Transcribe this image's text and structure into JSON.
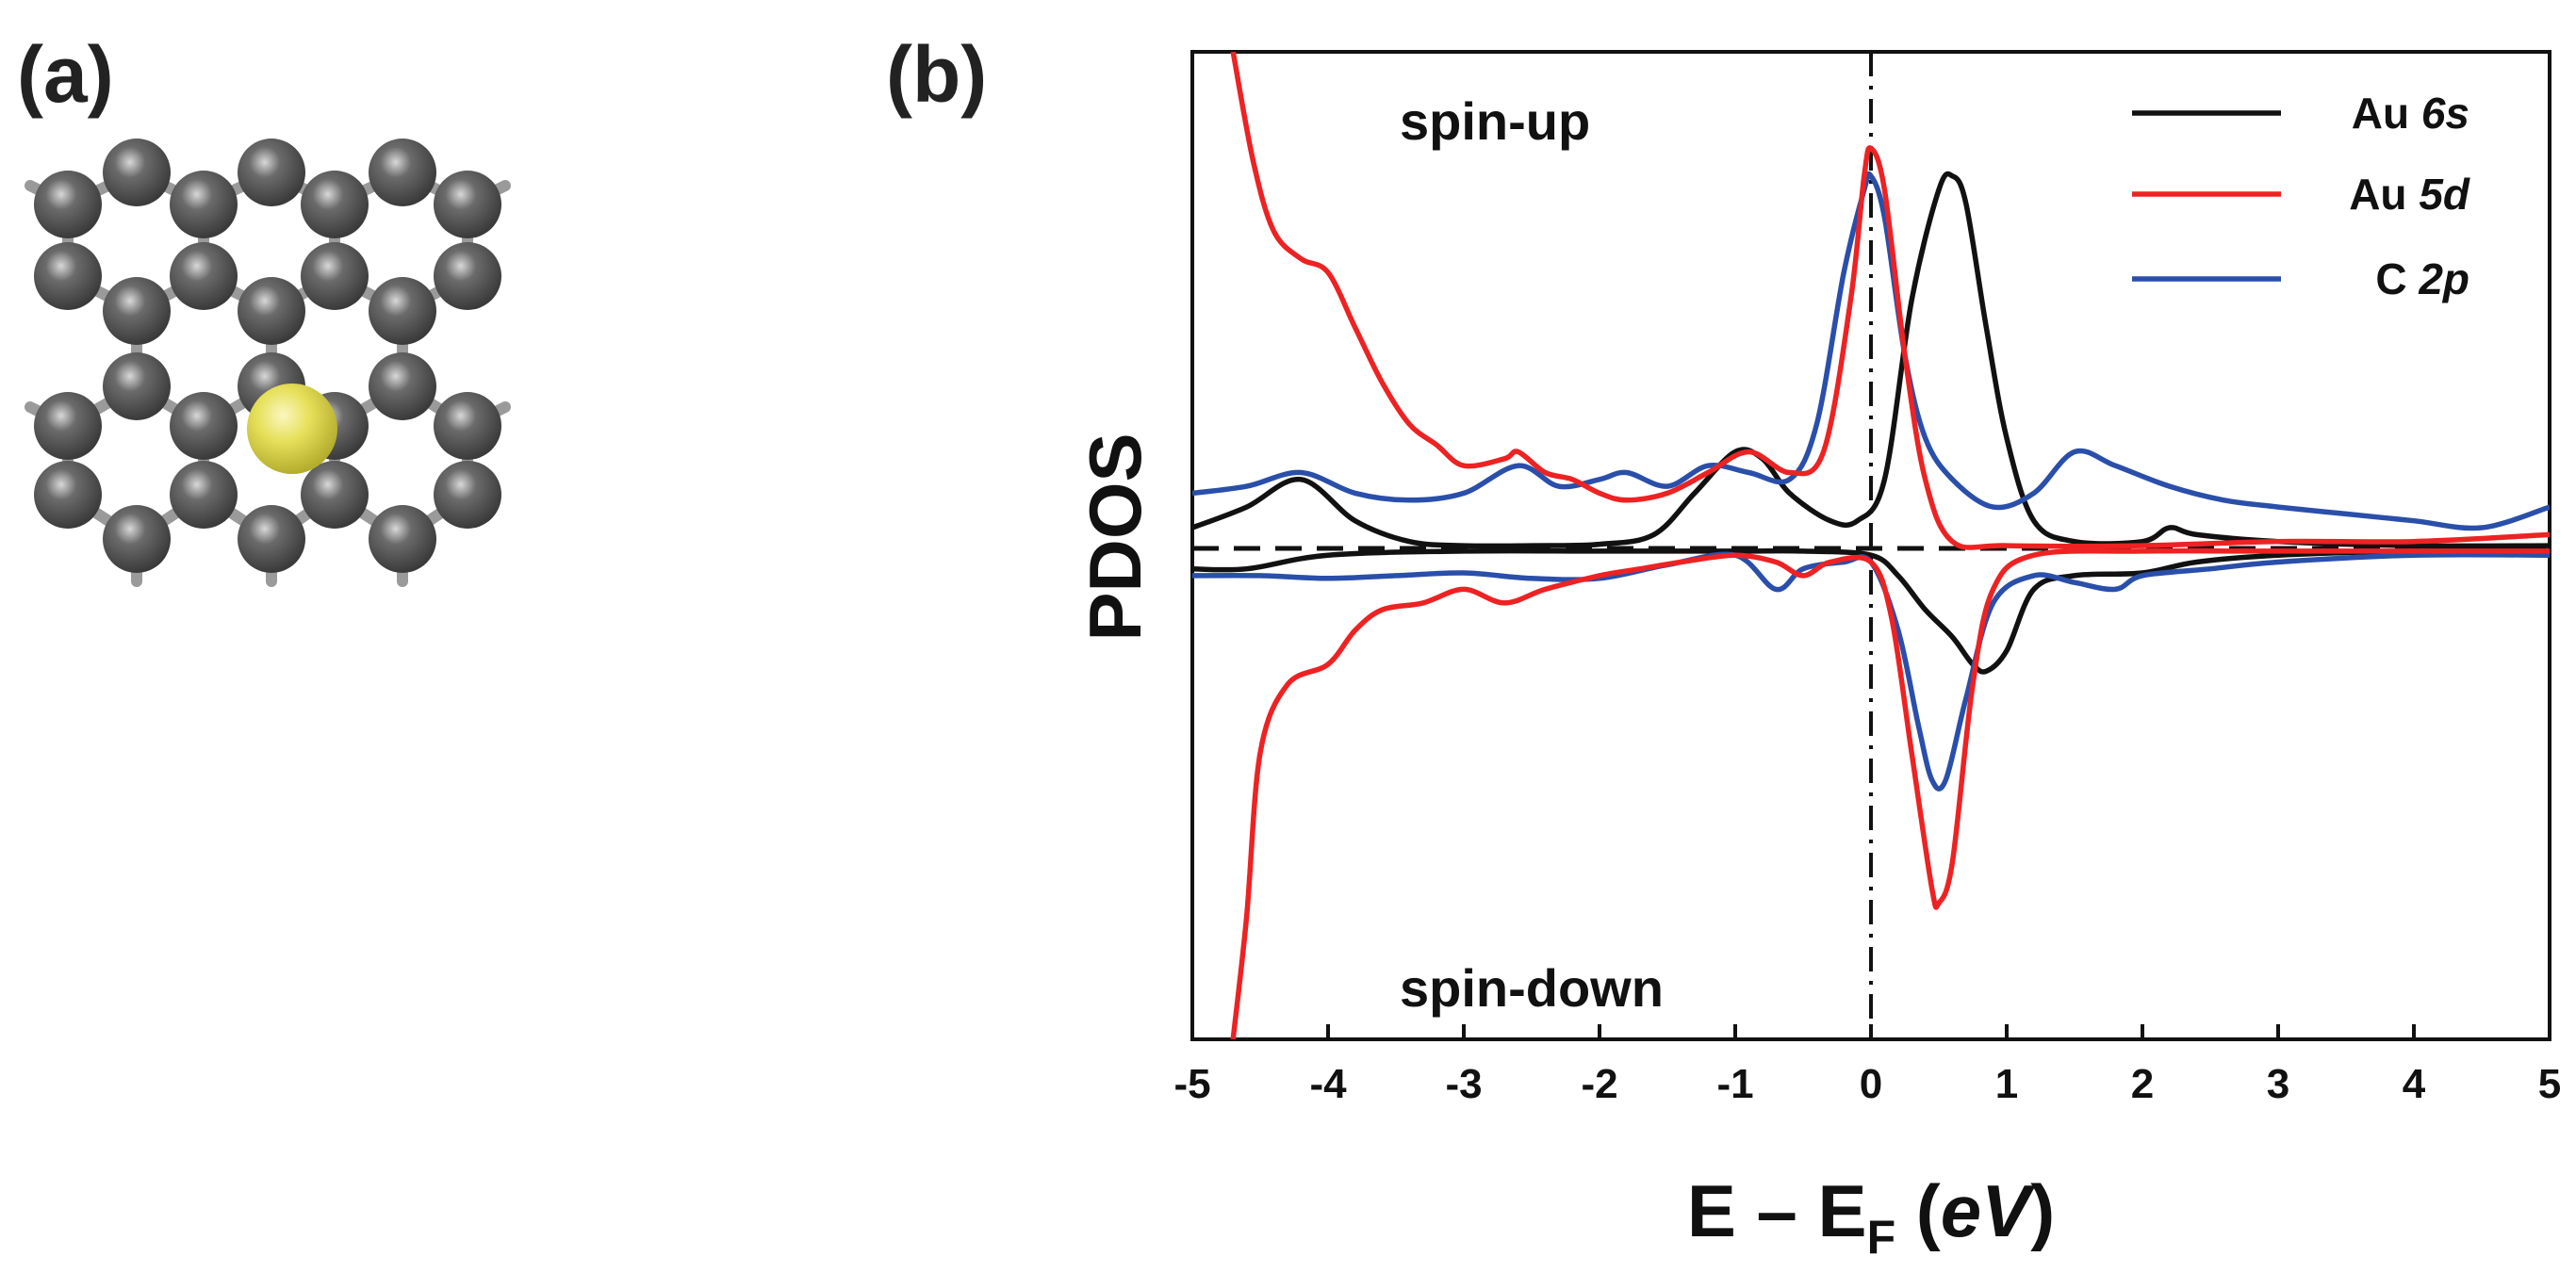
{
  "panel_a": {
    "label": "(a)",
    "atom_colors": {
      "carbon": "#6b6b6b",
      "gold": "#e6e05a",
      "bond": "#9a9a9a"
    }
  },
  "panel_b": {
    "label": "(b)"
  },
  "chart_data": {
    "type": "line",
    "ylabel": "PDOS",
    "xlabel_parts": {
      "main": "E – E",
      "sub": "F",
      "open": " (",
      "unit": "eV",
      "close": ")"
    },
    "xlim": [
      -5,
      5
    ],
    "xticks": [
      -5,
      -4,
      -3,
      -2,
      -1,
      0,
      1,
      2,
      3,
      4,
      5
    ],
    "ylim": [
      -3.6,
      3.6
    ],
    "yticks_shown": false,
    "grid": false,
    "legend_position": "top-right",
    "annotations": {
      "top": "spin-up",
      "bottom": "spin-down"
    },
    "reference_lines": {
      "horizontal_y": 0,
      "vertical_x": 0
    },
    "series": [
      {
        "name": "Au 6s",
        "name_main": "Au ",
        "name_italic": "6s",
        "color": "#111111",
        "up": [
          [
            -5,
            0.15
          ],
          [
            -4.6,
            0.3
          ],
          [
            -4.2,
            0.5
          ],
          [
            -3.8,
            0.2
          ],
          [
            -3.4,
            0.05
          ],
          [
            -3,
            0.02
          ],
          [
            -2.5,
            0.02
          ],
          [
            -2,
            0.03
          ],
          [
            -1.6,
            0.1
          ],
          [
            -1.3,
            0.4
          ],
          [
            -1.0,
            0.7
          ],
          [
            -0.8,
            0.65
          ],
          [
            -0.6,
            0.4
          ],
          [
            -0.3,
            0.2
          ],
          [
            -0.1,
            0.2
          ],
          [
            0.1,
            0.5
          ],
          [
            0.3,
            1.8
          ],
          [
            0.5,
            2.6
          ],
          [
            0.6,
            2.7
          ],
          [
            0.7,
            2.5
          ],
          [
            0.85,
            1.6
          ],
          [
            1.0,
            0.8
          ],
          [
            1.2,
            0.2
          ],
          [
            1.5,
            0.05
          ],
          [
            2.0,
            0.05
          ],
          [
            2.2,
            0.15
          ],
          [
            2.4,
            0.1
          ],
          [
            3,
            0.05
          ],
          [
            4,
            0.02
          ],
          [
            5,
            0.02
          ]
        ],
        "down": [
          [
            -5,
            -0.15
          ],
          [
            -4.6,
            -0.15
          ],
          [
            -4,
            -0.05
          ],
          [
            -3,
            -0.02
          ],
          [
            -2,
            -0.02
          ],
          [
            -1,
            -0.02
          ],
          [
            -0.5,
            -0.02
          ],
          [
            0,
            -0.05
          ],
          [
            0.2,
            -0.2
          ],
          [
            0.4,
            -0.45
          ],
          [
            0.6,
            -0.65
          ],
          [
            0.75,
            -0.85
          ],
          [
            0.85,
            -0.9
          ],
          [
            1.0,
            -0.75
          ],
          [
            1.2,
            -0.3
          ],
          [
            1.5,
            -0.2
          ],
          [
            2.0,
            -0.18
          ],
          [
            2.4,
            -0.1
          ],
          [
            3,
            -0.05
          ],
          [
            4,
            -0.02
          ],
          [
            5,
            -0.02
          ]
        ]
      },
      {
        "name": "Au 5d",
        "name_main": "Au ",
        "name_italic": "5d",
        "color": "#ee2222",
        "up": [
          [
            -4.7,
            3.6
          ],
          [
            -4.55,
            2.8
          ],
          [
            -4.4,
            2.3
          ],
          [
            -4.2,
            2.1
          ],
          [
            -4.0,
            2.0
          ],
          [
            -3.8,
            1.6
          ],
          [
            -3.6,
            1.2
          ],
          [
            -3.4,
            0.9
          ],
          [
            -3.2,
            0.75
          ],
          [
            -3.0,
            0.6
          ],
          [
            -2.7,
            0.65
          ],
          [
            -2.6,
            0.7
          ],
          [
            -2.4,
            0.55
          ],
          [
            -2.2,
            0.5
          ],
          [
            -2.0,
            0.4
          ],
          [
            -1.8,
            0.35
          ],
          [
            -1.5,
            0.4
          ],
          [
            -1.2,
            0.55
          ],
          [
            -0.9,
            0.7
          ],
          [
            -0.6,
            0.55
          ],
          [
            -0.35,
            0.7
          ],
          [
            -0.15,
            1.8
          ],
          [
            -0.05,
            2.7
          ],
          [
            0.0,
            2.9
          ],
          [
            0.1,
            2.6
          ],
          [
            0.25,
            1.4
          ],
          [
            0.4,
            0.5
          ],
          [
            0.6,
            0.05
          ],
          [
            1,
            0.02
          ],
          [
            2,
            0.02
          ],
          [
            3,
            0.05
          ],
          [
            4,
            0.05
          ],
          [
            5,
            0.1
          ]
        ],
        "down": [
          [
            -4.7,
            -3.6
          ],
          [
            -4.6,
            -2.7
          ],
          [
            -4.5,
            -1.5
          ],
          [
            -4.3,
            -1.0
          ],
          [
            -4.0,
            -0.85
          ],
          [
            -3.8,
            -0.6
          ],
          [
            -3.6,
            -0.45
          ],
          [
            -3.3,
            -0.4
          ],
          [
            -3.0,
            -0.3
          ],
          [
            -2.7,
            -0.4
          ],
          [
            -2.4,
            -0.3
          ],
          [
            -2.0,
            -0.2
          ],
          [
            -1.7,
            -0.15
          ],
          [
            -1.4,
            -0.1
          ],
          [
            -1.0,
            -0.05
          ],
          [
            -0.7,
            -0.1
          ],
          [
            -0.5,
            -0.2
          ],
          [
            -0.3,
            -0.1
          ],
          [
            0.0,
            -0.1
          ],
          [
            0.15,
            -0.5
          ],
          [
            0.3,
            -1.5
          ],
          [
            0.45,
            -2.5
          ],
          [
            0.5,
            -2.6
          ],
          [
            0.6,
            -2.3
          ],
          [
            0.75,
            -1.0
          ],
          [
            0.9,
            -0.3
          ],
          [
            1.2,
            -0.05
          ],
          [
            2,
            -0.02
          ],
          [
            3,
            -0.02
          ],
          [
            5,
            -0.02
          ]
        ]
      },
      {
        "name": "C 2p",
        "name_main": "C ",
        "name_italic": "2p",
        "color": "#2a4faa",
        "up": [
          [
            -5,
            0.4
          ],
          [
            -4.6,
            0.45
          ],
          [
            -4.2,
            0.55
          ],
          [
            -3.8,
            0.4
          ],
          [
            -3.4,
            0.35
          ],
          [
            -3.0,
            0.4
          ],
          [
            -2.6,
            0.6
          ],
          [
            -2.3,
            0.45
          ],
          [
            -2.0,
            0.5
          ],
          [
            -1.8,
            0.55
          ],
          [
            -1.5,
            0.45
          ],
          [
            -1.2,
            0.6
          ],
          [
            -0.9,
            0.55
          ],
          [
            -0.6,
            0.5
          ],
          [
            -0.4,
            0.9
          ],
          [
            -0.2,
            2.0
          ],
          [
            -0.05,
            2.6
          ],
          [
            0.0,
            2.7
          ],
          [
            0.1,
            2.4
          ],
          [
            0.25,
            1.4
          ],
          [
            0.4,
            0.8
          ],
          [
            0.6,
            0.5
          ],
          [
            0.9,
            0.3
          ],
          [
            1.2,
            0.4
          ],
          [
            1.5,
            0.7
          ],
          [
            1.8,
            0.6
          ],
          [
            2.2,
            0.45
          ],
          [
            2.6,
            0.35
          ],
          [
            3,
            0.3
          ],
          [
            3.5,
            0.25
          ],
          [
            4,
            0.2
          ],
          [
            4.5,
            0.15
          ],
          [
            5,
            0.3
          ]
        ],
        "down": [
          [
            -5,
            -0.2
          ],
          [
            -4.5,
            -0.2
          ],
          [
            -4,
            -0.22
          ],
          [
            -3.5,
            -0.2
          ],
          [
            -3,
            -0.18
          ],
          [
            -2.5,
            -0.22
          ],
          [
            -2,
            -0.22
          ],
          [
            -1.5,
            -0.12
          ],
          [
            -1,
            -0.05
          ],
          [
            -0.7,
            -0.3
          ],
          [
            -0.5,
            -0.15
          ],
          [
            -0.2,
            -0.1
          ],
          [
            0,
            -0.1
          ],
          [
            0.2,
            -0.6
          ],
          [
            0.35,
            -1.3
          ],
          [
            0.45,
            -1.7
          ],
          [
            0.55,
            -1.7
          ],
          [
            0.7,
            -1.1
          ],
          [
            0.9,
            -0.4
          ],
          [
            1.2,
            -0.2
          ],
          [
            1.5,
            -0.25
          ],
          [
            1.8,
            -0.3
          ],
          [
            2,
            -0.2
          ],
          [
            2.5,
            -0.15
          ],
          [
            3,
            -0.1
          ],
          [
            4,
            -0.05
          ],
          [
            5,
            -0.05
          ]
        ]
      }
    ]
  }
}
